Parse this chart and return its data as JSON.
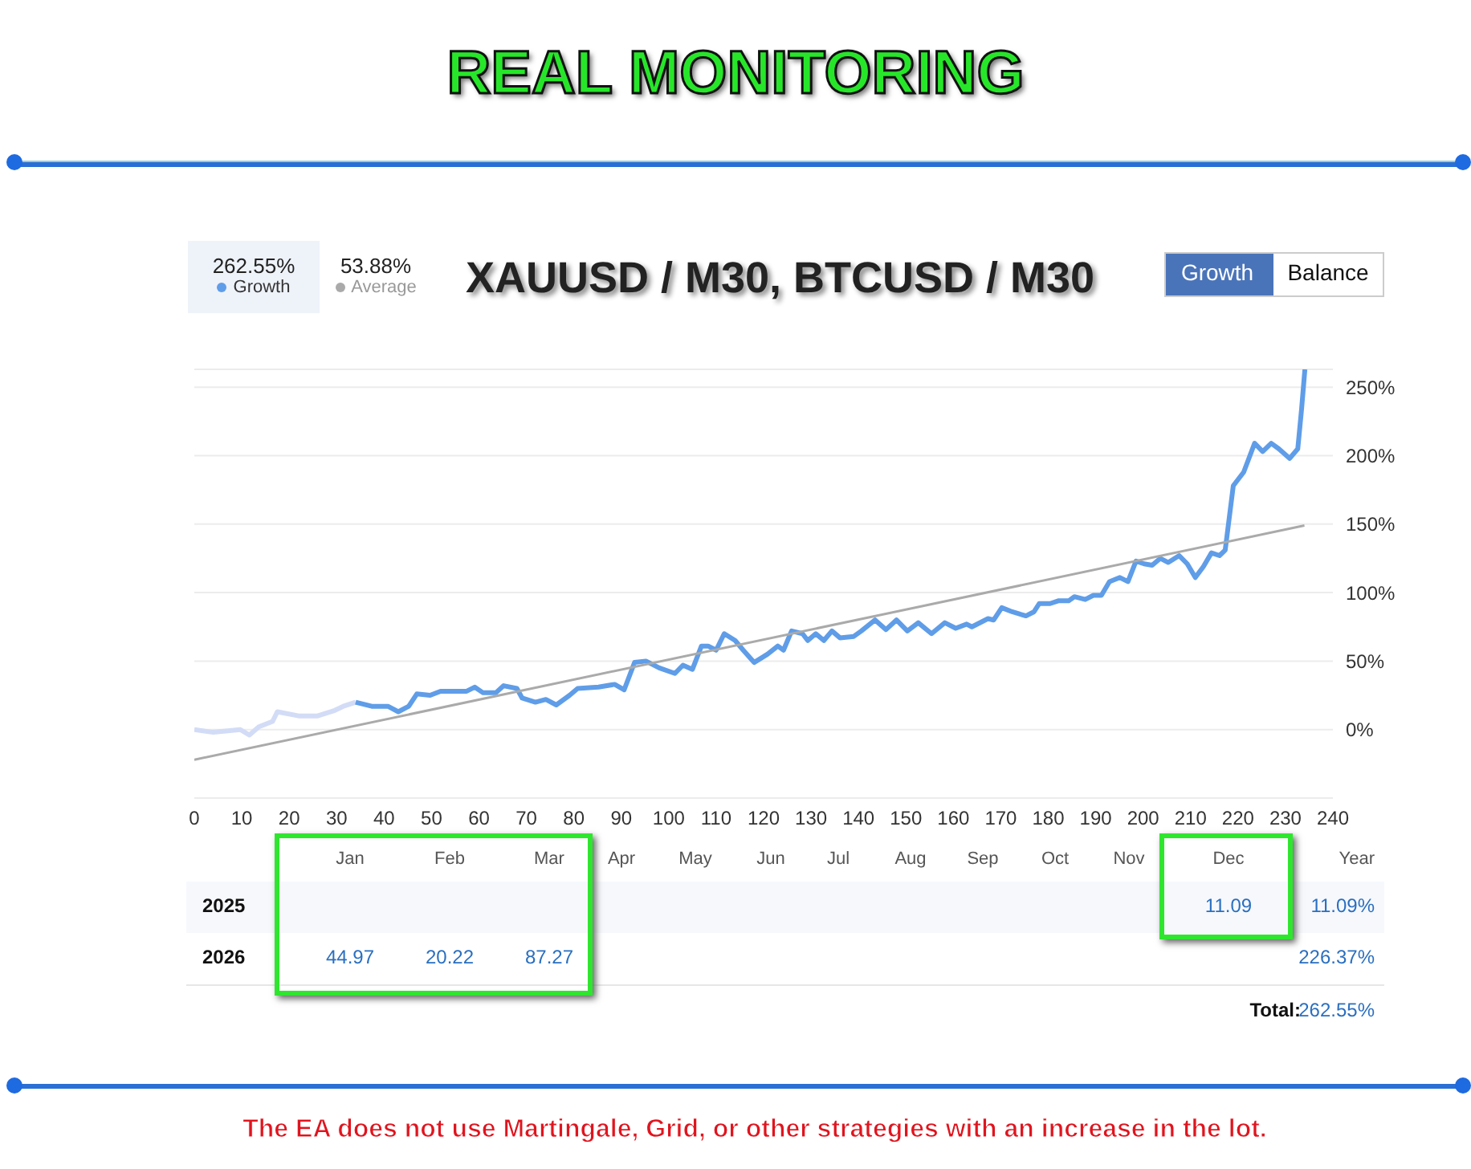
{
  "chart_data": {
    "type": "line",
    "title": "REAL MONITORING",
    "subtitle": "XAUUSD / M30, BTCUSD / M30",
    "series": [
      {
        "color": "#d3dcf6",
        "x": [
          0,
          4,
          9.7,
          11.6,
          13.6,
          16.5,
          17.5,
          22,
          26,
          29.6,
          31.4,
          34
        ],
        "values": [
          0,
          -2,
          0,
          -4,
          2,
          6,
          13,
          10,
          10,
          14,
          17,
          20
        ]
      },
      {
        "name": "Growth",
        "color": "#5f9de8",
        "x": [
          34,
          37.4,
          40.8,
          43,
          45.2,
          46.9,
          49.7,
          51.9,
          57.4,
          59.1,
          60.8,
          63.6,
          65.2,
          68,
          69.1,
          71.9,
          74.1,
          76.3,
          79.1,
          80.8,
          85.2,
          88.6,
          90.6,
          92.8,
          95.2,
          98,
          101.3,
          103,
          105,
          106.9,
          108.3,
          110,
          111.7,
          114,
          115.7,
          118,
          120.8,
          123,
          124.2,
          125.9,
          128.2,
          129.3,
          131,
          132.7,
          134.4,
          136.1,
          139,
          140.6,
          143.5,
          145.8,
          148,
          150.3,
          152.6,
          155.4,
          158.2,
          160.5,
          162.8,
          163.9,
          167.3,
          168.5,
          170.2,
          172.4,
          175.3,
          177,
          178.1,
          180.4,
          182.1,
          184.3,
          185.5,
          187.8,
          189.5,
          191.2,
          192.9,
          195.1,
          196.8,
          198.5,
          200.2,
          201.9,
          203.6,
          205.3,
          207.6,
          209.3,
          211,
          212.7,
          214.4,
          216.1,
          217.3,
          219,
          221.2,
          223.5,
          225.2,
          227,
          228.6,
          230.9,
          232.6,
          233.4,
          234.1
        ],
        "values": [
          20,
          17,
          17,
          13,
          17,
          26,
          25,
          28,
          28,
          31,
          27,
          27,
          32,
          30,
          23,
          20,
          22,
          18,
          25,
          30,
          31,
          33,
          29,
          49,
          50,
          45,
          41,
          47,
          44,
          61,
          61,
          58,
          70,
          65,
          58,
          49,
          55,
          61,
          58,
          72,
          70,
          65,
          70,
          65,
          72,
          67,
          68,
          72,
          80,
          73,
          80,
          72,
          78,
          70,
          78,
          74,
          77,
          75,
          81,
          80,
          89,
          86,
          83,
          86,
          92,
          92,
          94,
          94,
          97,
          95,
          98,
          98,
          108,
          111,
          108,
          123,
          121,
          120,
          125,
          122,
          127,
          121,
          111,
          119,
          129,
          127,
          131,
          178,
          188,
          209,
          203,
          209,
          205,
          198,
          205,
          234,
          263
        ]
      },
      {
        "name": "Average",
        "color": "#aaaaaa",
        "x": [
          0,
          234
        ],
        "values": [
          -22,
          149
        ]
      }
    ],
    "xlim": [
      0,
      240
    ],
    "xticks": [
      0,
      10,
      20,
      30,
      40,
      50,
      60,
      70,
      80,
      90,
      100,
      110,
      120,
      130,
      140,
      150,
      160,
      170,
      180,
      190,
      200,
      210,
      220,
      230,
      240
    ],
    "ylim": [
      -50,
      263
    ],
    "yticks": [
      {
        "value": -50,
        "label": null
      },
      {
        "value": 0,
        "label": "0%"
      },
      {
        "value": 50,
        "label": "50%"
      },
      {
        "value": 100,
        "label": "100%"
      },
      {
        "value": 150,
        "label": "150%"
      },
      {
        "value": 200,
        "label": "200%"
      },
      {
        "value": 250,
        "label": "250%"
      }
    ],
    "grid": "y",
    "legend": "top left",
    "marker": "none",
    "line_style": "solid",
    "annotations": [
      "262.55%",
      "53.88%",
      "Growth",
      "Balance",
      "Jan",
      "Feb",
      "Mar",
      "Apr",
      "May",
      "Jun",
      "Jul",
      "Aug",
      "Sep",
      "Oct",
      "Nov",
      "Dec",
      "Year",
      "2025",
      "11.09",
      "11.09%",
      "2026",
      "44.97",
      "20.22",
      "87.27",
      "226.37%",
      "Total:",
      "262.55%",
      "The EA does not use Martingale, Grid, or other strategies with an increase in the lot."
    ]
  }
}
